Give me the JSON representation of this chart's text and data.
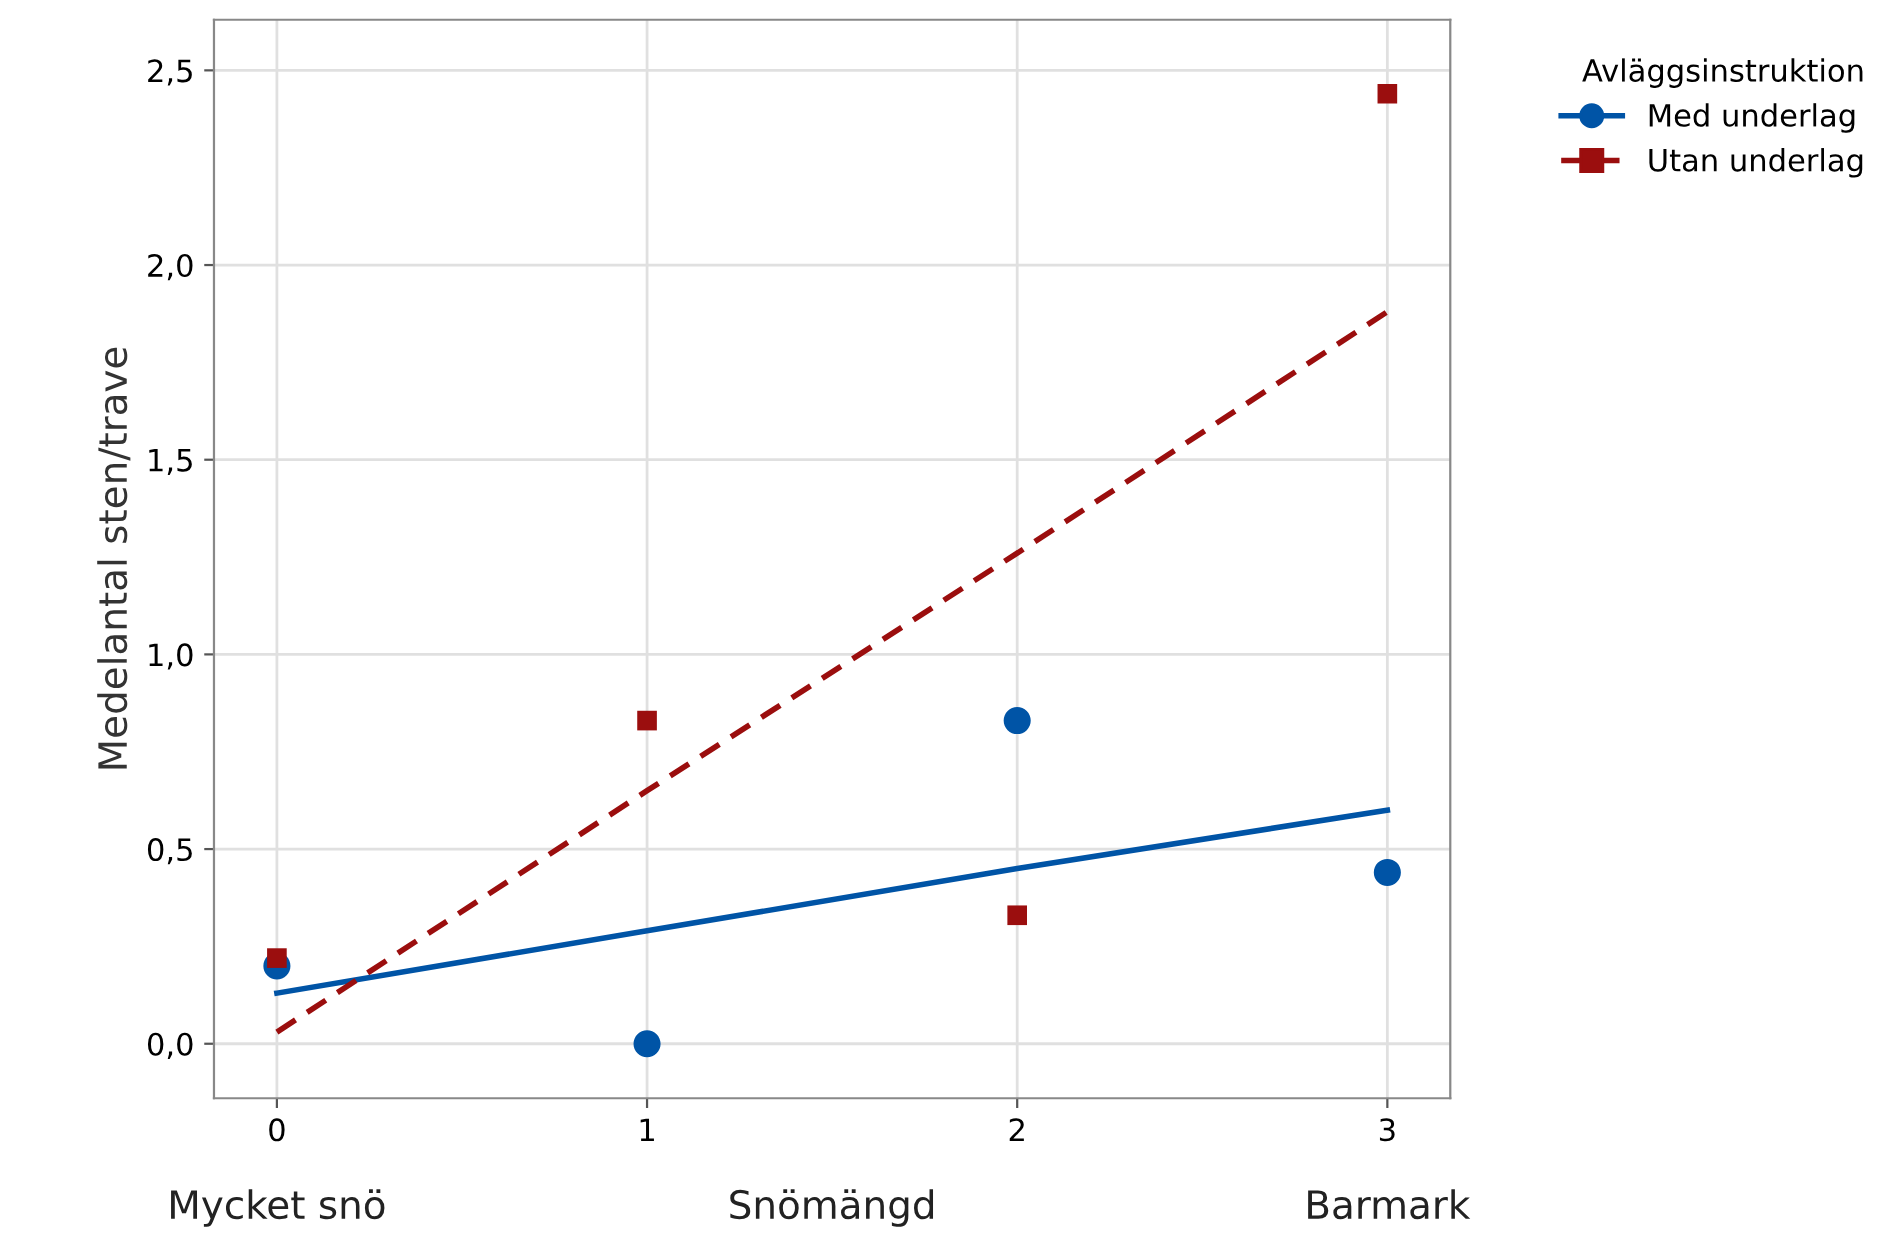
{
  "chart_data": {
    "type": "scatter",
    "ylabel": "Medelantal sten/trave",
    "xlabel": "Snömängd",
    "legend_title": "Avläggsinstruktion",
    "x": [
      0,
      1,
      2,
      3
    ],
    "series": [
      {
        "name": "Med underlag",
        "color": "#0054a6",
        "marker": "circle",
        "values": [
          0.2,
          0.0,
          0.83,
          0.44
        ]
      },
      {
        "name": "Utan underlag",
        "color": "#9b0e0e",
        "marker": "square",
        "values": [
          0.22,
          0.83,
          0.33,
          2.44
        ]
      },
      {
        "type": "line",
        "color": "#0054a6",
        "line_style": "solid",
        "values": [
          0.13,
          0.29,
          0.45,
          0.6
        ]
      },
      {
        "type": "line",
        "color": "#9b0e0e",
        "line_style": "dashed",
        "values": [
          0.03,
          0.65,
          1.26,
          1.88
        ]
      }
    ],
    "annotations": [
      "Mycket snö",
      "Barmark"
    ],
    "xlim": [
      -0.17,
      3.17
    ],
    "xticks": [
      0,
      1,
      2,
      3
    ],
    "ylim": [
      -0.14,
      2.63
    ],
    "yticks": [
      {
        "value": 0,
        "label": "0,0"
      },
      {
        "value": 0.5,
        "label": "0,5"
      },
      {
        "value": 1,
        "label": "1,0"
      },
      {
        "value": 1.5,
        "label": "1,5"
      },
      {
        "value": 2,
        "label": "2,0"
      },
      {
        "value": 2.5,
        "label": "2,5"
      }
    ],
    "grid": true,
    "legend": "top right"
  }
}
